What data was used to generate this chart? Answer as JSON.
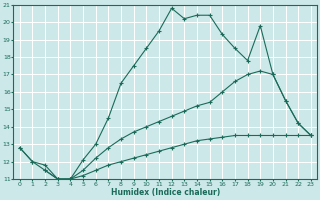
{
  "xlabel": "Humidex (Indice chaleur)",
  "bg_color": "#cde8e8",
  "grid_color": "#b8d8d8",
  "line_color": "#1a6b5a",
  "xlim": [
    -0.5,
    23.5
  ],
  "ylim": [
    11,
    21
  ],
  "yticks": [
    11,
    12,
    13,
    14,
    15,
    16,
    17,
    18,
    19,
    20,
    21
  ],
  "xticks": [
    0,
    1,
    2,
    3,
    4,
    5,
    6,
    7,
    8,
    9,
    10,
    11,
    12,
    13,
    14,
    15,
    16,
    17,
    18,
    19,
    20,
    21,
    22,
    23
  ],
  "line1_x": [
    0,
    1,
    2,
    3,
    4,
    5,
    6,
    7,
    8,
    9,
    10,
    11,
    12,
    13,
    14,
    15,
    16,
    17,
    18,
    19,
    20,
    21,
    22,
    23
  ],
  "line1_y": [
    12.8,
    12.0,
    11.5,
    11.0,
    11.0,
    12.1,
    13.0,
    14.5,
    16.5,
    17.5,
    18.5,
    19.5,
    20.8,
    20.2,
    20.4,
    20.4,
    19.3,
    18.5,
    17.8,
    19.8,
    17.0,
    15.5,
    14.2,
    13.5
  ],
  "line2_x": [
    0,
    1,
    2,
    3,
    4,
    5,
    6,
    7,
    8,
    9,
    10,
    11,
    12,
    13,
    14,
    15,
    16,
    17,
    18,
    19,
    20,
    21,
    22,
    23
  ],
  "line2_y": [
    12.8,
    12.0,
    11.8,
    11.0,
    11.0,
    11.5,
    12.2,
    12.8,
    13.3,
    13.7,
    14.0,
    14.3,
    14.6,
    14.9,
    15.2,
    15.4,
    16.0,
    16.6,
    17.0,
    17.2,
    17.0,
    15.5,
    14.2,
    13.5
  ],
  "line3_x": [
    2,
    3,
    4,
    5,
    6,
    7,
    8,
    9,
    10,
    11,
    12,
    13,
    14,
    15,
    16,
    17,
    18,
    19,
    20,
    21,
    22,
    23
  ],
  "line3_y": [
    11.5,
    11.0,
    11.0,
    11.2,
    11.5,
    11.8,
    12.0,
    12.2,
    12.4,
    12.6,
    12.8,
    13.0,
    13.2,
    13.3,
    13.4,
    13.5,
    13.5,
    13.5,
    13.5,
    13.5,
    13.5,
    13.5
  ]
}
